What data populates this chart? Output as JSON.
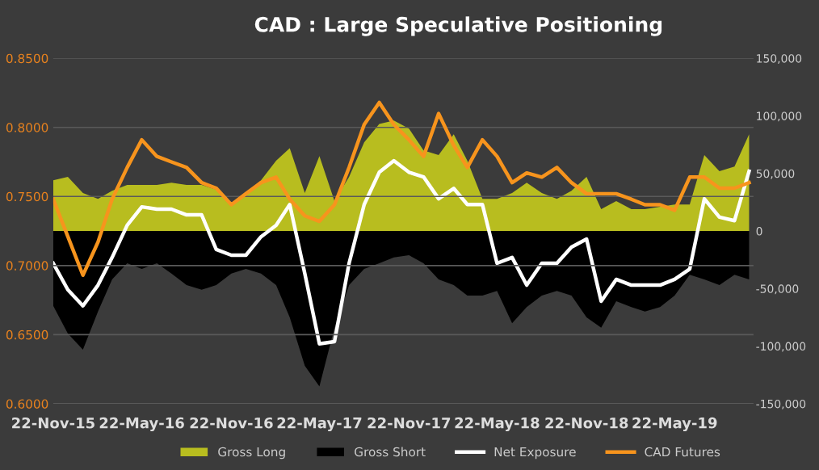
{
  "chart_data": {
    "type": "line",
    "title": "CAD : Large Speculative Positioning",
    "x": [
      "2015-11-22",
      "2015-12-22",
      "2016-01-22",
      "2016-02-22",
      "2016-03-22",
      "2016-04-22",
      "2016-05-22",
      "2016-06-22",
      "2016-07-22",
      "2016-08-22",
      "2016-09-22",
      "2016-10-22",
      "2016-11-22",
      "2016-12-22",
      "2017-01-22",
      "2017-02-22",
      "2017-03-22",
      "2017-04-22",
      "2017-05-22",
      "2017-06-22",
      "2017-07-22",
      "2017-08-22",
      "2017-09-22",
      "2017-10-22",
      "2017-11-22",
      "2017-12-22",
      "2018-01-22",
      "2018-02-22",
      "2018-03-22",
      "2018-04-22",
      "2018-05-22",
      "2018-06-22",
      "2018-07-22",
      "2018-08-22",
      "2018-09-22",
      "2018-10-22",
      "2018-11-22",
      "2018-12-22",
      "2019-01-22",
      "2019-02-22",
      "2019-03-22",
      "2019-04-22",
      "2019-05-22",
      "2019-06-22",
      "2019-07-22",
      "2019-08-22",
      "2019-09-22",
      "2019-10-22"
    ],
    "series": [
      {
        "name": "Gross Long",
        "type": "area",
        "axis": "y2",
        "color": "#b8bd1f",
        "values": [
          44000,
          47000,
          33000,
          28000,
          35000,
          40000,
          40000,
          40000,
          42000,
          40000,
          40000,
          36000,
          23000,
          33000,
          44000,
          61000,
          72000,
          33000,
          65000,
          26000,
          47000,
          77000,
          93000,
          96000,
          89000,
          70000,
          66000,
          84000,
          61000,
          28000,
          28000,
          33000,
          42000,
          33000,
          28000,
          35000,
          47000,
          19000,
          26000,
          19000,
          19000,
          21000,
          23000,
          23000,
          66000,
          52000,
          56000,
          84000
        ]
      },
      {
        "name": "Gross Short",
        "type": "area",
        "axis": "y2",
        "color": "#000000",
        "values": [
          -65000,
          -89000,
          -103000,
          -70000,
          -42000,
          -28000,
          -33000,
          -28000,
          -37000,
          -47000,
          -51000,
          -47000,
          -37000,
          -33000,
          -37000,
          -47000,
          -75000,
          -117000,
          -135000,
          -84000,
          -47000,
          -33000,
          -28000,
          -23000,
          -21000,
          -28000,
          -42000,
          -47000,
          -56000,
          -56000,
          -52000,
          -80000,
          -66000,
          -56000,
          -52000,
          -56000,
          -75000,
          -84000,
          -61000,
          -66000,
          -70000,
          -66000,
          -56000,
          -38000,
          -42000,
          -47000,
          -38000,
          -42000
        ]
      },
      {
        "name": "Net Exposure",
        "type": "line",
        "axis": "y2",
        "color": "#ffffff",
        "values": [
          -28000,
          -51000,
          -65000,
          -47000,
          -23000,
          5000,
          21000,
          19000,
          19000,
          14000,
          14000,
          -16000,
          -21000,
          -21000,
          -5000,
          5000,
          23000,
          -37000,
          -98000,
          -96000,
          -28000,
          23000,
          51000,
          61000,
          51000,
          47000,
          28000,
          37000,
          23000,
          23000,
          -28000,
          -23000,
          -47000,
          -28000,
          -28000,
          -14000,
          -7000,
          -61000,
          -42000,
          -47000,
          -47000,
          -47000,
          -42000,
          -33000,
          28000,
          12000,
          9000,
          52000
        ]
      },
      {
        "name": "CAD Futures",
        "color": "#f7941d",
        "values": [
          0.748,
          0.721,
          0.693,
          0.717,
          0.748,
          0.771,
          0.791,
          0.779,
          0.775,
          0.771,
          0.76,
          0.756,
          0.744,
          0.752,
          0.76,
          0.764,
          0.748,
          0.736,
          0.732,
          0.744,
          0.771,
          0.802,
          0.818,
          0.802,
          0.791,
          0.779,
          0.81,
          0.787,
          0.771,
          0.791,
          0.779,
          0.76,
          0.767,
          0.764,
          0.771,
          0.76,
          0.752,
          0.752,
          0.752,
          0.748,
          0.744,
          0.744,
          0.74,
          0.764,
          0.764,
          0.756,
          0.756,
          0.76
        ]
      }
    ],
    "xlim": [
      "2015-11-22",
      "2019-10-31"
    ],
    "xticks": [
      {
        "value": "2015-11-22",
        "label": "22-Nov-15"
      },
      {
        "value": "2016-05-22",
        "label": "22-May-16"
      },
      {
        "value": "2016-11-22",
        "label": "22-Nov-16"
      },
      {
        "value": "2017-05-22",
        "label": "22-May-17"
      },
      {
        "value": "2017-11-22",
        "label": "22-Nov-17"
      },
      {
        "value": "2018-05-22",
        "label": "22-May-18"
      },
      {
        "value": "2018-11-22",
        "label": "22-Nov-18"
      },
      {
        "value": "2019-05-22",
        "label": "22-May-19"
      }
    ],
    "ylim": [
      0.6,
      0.85
    ],
    "yticks": [
      {
        "value": 0.6,
        "label": "0.6000"
      },
      {
        "value": 0.65,
        "label": "0.6500"
      },
      {
        "value": 0.7,
        "label": "0.7000"
      },
      {
        "value": 0.75,
        "label": "0.7500"
      },
      {
        "value": 0.8,
        "label": "0.8000"
      },
      {
        "value": 0.85,
        "label": "0.8500"
      }
    ],
    "y2lim": [
      -150000,
      150000
    ],
    "y2ticks": [
      {
        "value": -150000,
        "label": "-150,000"
      },
      {
        "value": -100000,
        "label": "-100,000"
      },
      {
        "value": -50000,
        "label": "-50,000"
      },
      {
        "value": 0,
        "label": "0"
      },
      {
        "value": 50000,
        "label": "50,000"
      },
      {
        "value": 100000,
        "label": "100,000"
      },
      {
        "value": 150000,
        "label": "150,000"
      }
    ],
    "grid": "y",
    "legend": "bottom",
    "marker": "none",
    "line_style": "solid"
  }
}
